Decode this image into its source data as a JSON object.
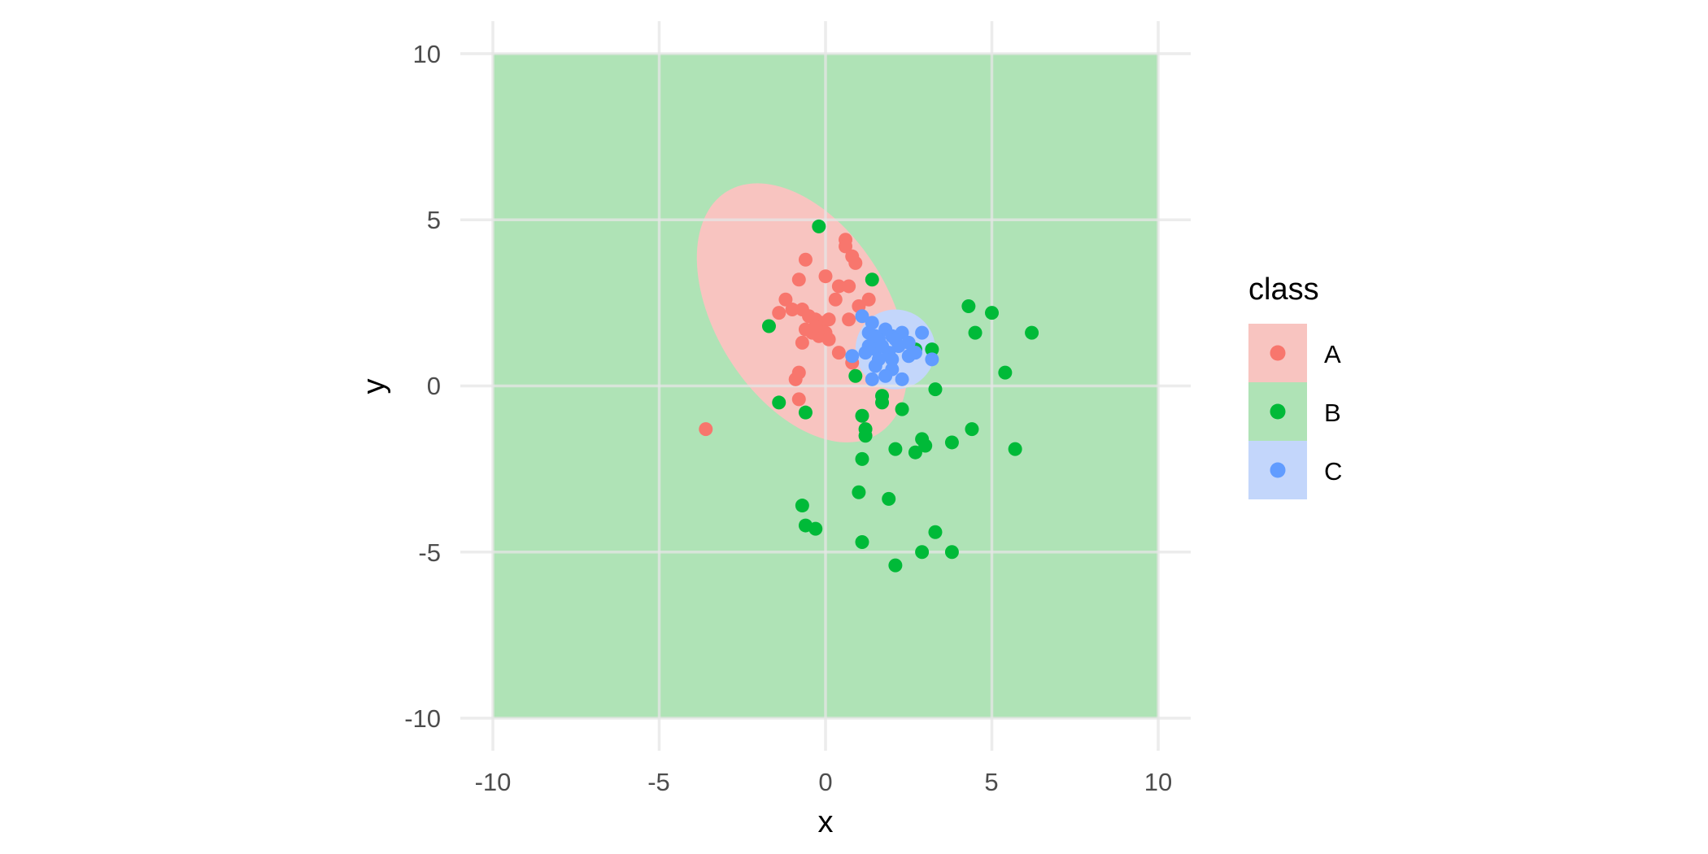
{
  "chart_data": {
    "type": "scatter",
    "xlabel": "x",
    "ylabel": "y",
    "xlim": [
      -10,
      10
    ],
    "ylim": [
      -10,
      10
    ],
    "x_ticks": [
      "-10",
      "-5",
      "0",
      "5",
      "10"
    ],
    "y_ticks": [
      "10",
      "5",
      "0",
      "-5",
      "-10"
    ],
    "grid": true,
    "legend": {
      "title": "class",
      "placement": "right",
      "entries": [
        "A",
        "B",
        "C"
      ]
    },
    "colors": {
      "A": "#F8766D",
      "B": "#00BA38",
      "C": "#619CFF",
      "A_region": "#F8C4C0",
      "B_region": "#AFE3B6",
      "C_region": "#C3D6FB",
      "grid": "#E5E5E5"
    },
    "background_class": "B",
    "regions": [
      {
        "class": "A",
        "shape": "ellipse",
        "cx": -0.7,
        "cy": 2.2,
        "rx": 2.6,
        "ry": 4.3,
        "rotation_deg": -32
      },
      {
        "class": "C",
        "shape": "ellipse",
        "cx": 2.1,
        "cy": 1.1,
        "rx": 1.2,
        "ry": 1.2,
        "rotation_deg": 0
      }
    ],
    "series": [
      {
        "name": "A",
        "points": [
          [
            -3.6,
            -1.3
          ],
          [
            -0.8,
            -0.4
          ],
          [
            -0.9,
            0.2
          ],
          [
            -0.8,
            0.4
          ],
          [
            -0.6,
            3.8
          ],
          [
            -0.8,
            3.2
          ],
          [
            -1.2,
            2.6
          ],
          [
            -1.0,
            2.3
          ],
          [
            -1.4,
            2.2
          ],
          [
            -0.7,
            2.3
          ],
          [
            -0.5,
            2.1
          ],
          [
            -0.3,
            2.0
          ],
          [
            -0.6,
            1.7
          ],
          [
            -0.4,
            1.6
          ],
          [
            -0.1,
            1.9
          ],
          [
            0.0,
            1.6
          ],
          [
            -0.2,
            1.5
          ],
          [
            0.1,
            2.0
          ],
          [
            -0.7,
            1.3
          ],
          [
            0.4,
            1.0
          ],
          [
            0.6,
            4.4
          ],
          [
            0.6,
            4.2
          ],
          [
            0.8,
            3.9
          ],
          [
            0.9,
            3.7
          ],
          [
            0.0,
            3.3
          ],
          [
            0.4,
            3.0
          ],
          [
            0.7,
            3.0
          ],
          [
            0.3,
            2.6
          ],
          [
            1.3,
            2.6
          ],
          [
            0.7,
            2.0
          ],
          [
            1.0,
            2.4
          ],
          [
            0.1,
            1.4
          ],
          [
            0.8,
            0.7
          ],
          [
            -0.3,
            1.8
          ]
        ]
      },
      {
        "name": "B",
        "points": [
          [
            -0.2,
            4.8
          ],
          [
            1.4,
            3.2
          ],
          [
            -1.7,
            1.8
          ],
          [
            -1.4,
            -0.5
          ],
          [
            -0.6,
            -0.8
          ],
          [
            0.9,
            0.3
          ],
          [
            1.1,
            -0.9
          ],
          [
            1.7,
            -0.3
          ],
          [
            1.7,
            -0.5
          ],
          [
            2.3,
            -0.7
          ],
          [
            1.2,
            -1.3
          ],
          [
            1.2,
            -1.5
          ],
          [
            1.1,
            -2.2
          ],
          [
            2.1,
            -1.9
          ],
          [
            2.7,
            -2.0
          ],
          [
            2.9,
            -1.6
          ],
          [
            3.0,
            -1.8
          ],
          [
            3.8,
            -1.7
          ],
          [
            4.4,
            -1.3
          ],
          [
            5.7,
            -1.9
          ],
          [
            1.0,
            -3.2
          ],
          [
            1.9,
            -3.4
          ],
          [
            -0.7,
            -3.6
          ],
          [
            -0.6,
            -4.2
          ],
          [
            -0.3,
            -4.3
          ],
          [
            1.1,
            -4.7
          ],
          [
            3.3,
            -4.4
          ],
          [
            2.1,
            -5.4
          ],
          [
            2.9,
            -5.0
          ],
          [
            3.8,
            -5.0
          ],
          [
            3.3,
            -0.1
          ],
          [
            5.4,
            0.4
          ],
          [
            4.3,
            2.4
          ],
          [
            5.0,
            2.2
          ],
          [
            4.5,
            1.6
          ],
          [
            6.2,
            1.6
          ],
          [
            3.2,
            1.1
          ],
          [
            2.7,
            1.1
          ]
        ]
      },
      {
        "name": "C",
        "points": [
          [
            1.1,
            2.1
          ],
          [
            1.4,
            1.9
          ],
          [
            1.8,
            1.7
          ],
          [
            2.3,
            1.6
          ],
          [
            2.9,
            1.6
          ],
          [
            1.3,
            1.6
          ],
          [
            1.6,
            1.4
          ],
          [
            2.0,
            1.5
          ],
          [
            2.5,
            1.3
          ],
          [
            2.2,
            1.2
          ],
          [
            1.9,
            1.0
          ],
          [
            1.5,
            1.1
          ],
          [
            1.3,
            1.2
          ],
          [
            1.6,
            0.8
          ],
          [
            2.0,
            0.8
          ],
          [
            2.5,
            0.9
          ],
          [
            0.8,
            0.9
          ],
          [
            3.2,
            0.8
          ],
          [
            1.5,
            0.6
          ],
          [
            2.0,
            0.5
          ],
          [
            1.8,
            0.3
          ],
          [
            1.4,
            0.2
          ],
          [
            2.3,
            0.2
          ],
          [
            1.7,
            1.2
          ],
          [
            2.1,
            1.4
          ],
          [
            1.5,
            1.5
          ],
          [
            2.7,
            1.0
          ],
          [
            1.2,
            1.0
          ]
        ]
      }
    ]
  }
}
